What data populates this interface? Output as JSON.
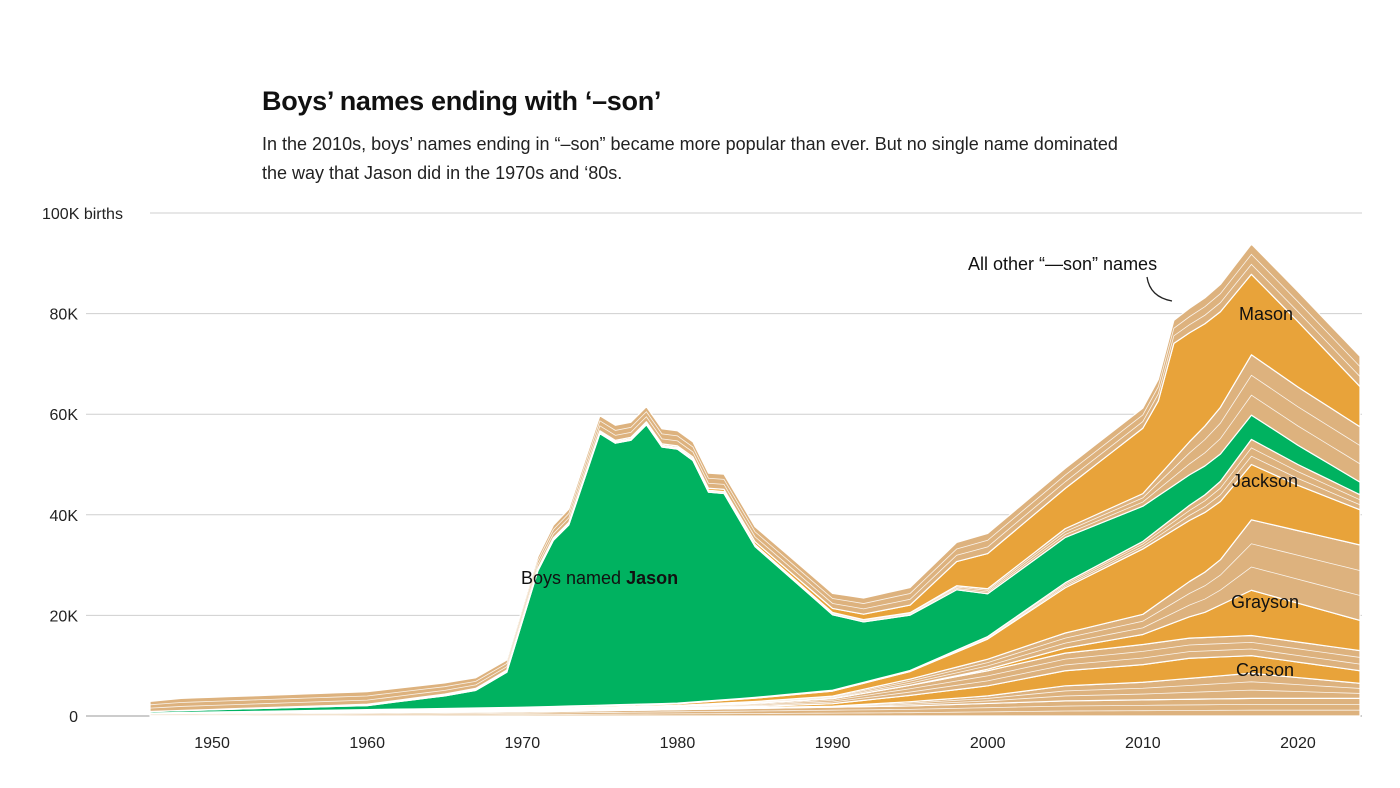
{
  "title": "Boys’ names ending with ‘–son’",
  "subtitle": "In the 2010s, boys’ names ending in “–son” became more popular than ever. But no single name dominated the way that Jason did in the 1970s and ‘80s.",
  "chart_data": {
    "type": "area",
    "stacked": true,
    "title": "Boys’ names ending with ‘–son’",
    "ylabel": "births",
    "ylim": [
      0,
      100000
    ],
    "xlim": [
      1946,
      2024
    ],
    "y_ticks": [
      "0",
      "20K",
      "40K",
      "60K",
      "80K",
      "100K births"
    ],
    "y_tick_values": [
      0,
      20000,
      40000,
      60000,
      80000,
      100000
    ],
    "x_ticks": [
      "1950",
      "1960",
      "1970",
      "1980",
      "1990",
      "2000",
      "2010",
      "2020"
    ],
    "grid": true,
    "colors": {
      "highlight_orange": "#e8a33a",
      "jason_green": "#00b260",
      "other_tan": "#ddb27e",
      "separator": "#ffffff"
    },
    "annotations": {
      "jason_prefix": "Boys named ",
      "jason_name": "Jason",
      "others": "All other “—son” names",
      "mason": "Mason",
      "jackson": "Jackson",
      "grayson": "Grayson",
      "carson": "Carson"
    },
    "series_units": "thousands of births, [year, value] anchor points, linearly interpolated",
    "series": [
      {
        "key": "other-bottom",
        "color": "other_tan",
        "points": [
          [
            1946,
            0.5
          ],
          [
            1970,
            0.8
          ],
          [
            1985,
            1.5
          ],
          [
            1995,
            2
          ],
          [
            2005,
            3
          ],
          [
            2017,
            3.5
          ],
          [
            2024,
            3.5
          ]
        ]
      },
      {
        "key": "other-a",
        "color": "other_tan",
        "points": [
          [
            1946,
            0.1
          ],
          [
            1990,
            0.2
          ],
          [
            2000,
            1.5
          ],
          [
            2005,
            3
          ],
          [
            2010,
            3.5
          ],
          [
            2017,
            5
          ],
          [
            2024,
            3
          ]
        ]
      },
      {
        "key": "carson",
        "name": "Carson",
        "color": "highlight_orange",
        "points": [
          [
            1946,
            0
          ],
          [
            1985,
            0.2
          ],
          [
            1990,
            0.5
          ],
          [
            2000,
            2
          ],
          [
            2005,
            3
          ],
          [
            2010,
            3.5
          ],
          [
            2013,
            4
          ],
          [
            2017,
            3.5
          ],
          [
            2024,
            2.5
          ]
        ]
      },
      {
        "key": "other-b",
        "color": "other_tan",
        "points": [
          [
            1946,
            0
          ],
          [
            1980,
            0.3
          ],
          [
            1990,
            1
          ],
          [
            2000,
            3
          ],
          [
            2010,
            4
          ],
          [
            2017,
            4
          ],
          [
            2024,
            4
          ]
        ]
      },
      {
        "key": "grayson",
        "name": "Grayson",
        "color": "highlight_orange",
        "points": [
          [
            1946,
            0
          ],
          [
            1995,
            0
          ],
          [
            2000,
            0.3
          ],
          [
            2005,
            1
          ],
          [
            2010,
            2
          ],
          [
            2014,
            5
          ],
          [
            2017,
            9
          ],
          [
            2024,
            6
          ]
        ]
      },
      {
        "key": "other-c",
        "color": "other_tan",
        "points": [
          [
            1946,
            0
          ],
          [
            1980,
            0.2
          ],
          [
            1990,
            0.5
          ],
          [
            2000,
            2
          ],
          [
            2010,
            4
          ],
          [
            2015,
            9
          ],
          [
            2017,
            14
          ],
          [
            2024,
            15
          ]
        ]
      },
      {
        "key": "jackson",
        "name": "Jackson",
        "color": "highlight_orange",
        "points": [
          [
            1946,
            0
          ],
          [
            1980,
            0.3
          ],
          [
            1990,
            1
          ],
          [
            1995,
            1.5
          ],
          [
            2000,
            4
          ],
          [
            2005,
            9
          ],
          [
            2010,
            13
          ],
          [
            2017,
            11
          ],
          [
            2020,
            9
          ],
          [
            2024,
            7
          ]
        ]
      },
      {
        "key": "other-d",
        "color": "other_tan",
        "points": [
          [
            1946,
            0
          ],
          [
            1995,
            0.2
          ],
          [
            2000,
            0.5
          ],
          [
            2010,
            1.5
          ],
          [
            2017,
            5
          ],
          [
            2024,
            3
          ]
        ]
      },
      {
        "key": "jason",
        "name": "Jason",
        "color": "jason_green",
        "points": [
          [
            1946,
            0.3
          ],
          [
            1960,
            0.8
          ],
          [
            1965,
            2.5
          ],
          [
            1967,
            3.5
          ],
          [
            1969,
            7
          ],
          [
            1971,
            27
          ],
          [
            1972,
            33
          ],
          [
            1973,
            36
          ],
          [
            1975,
            54
          ],
          [
            1976,
            52
          ],
          [
            1977,
            52.5
          ],
          [
            1978,
            55.5
          ],
          [
            1979,
            51
          ],
          [
            1980,
            50.5
          ],
          [
            1981,
            48
          ],
          [
            1982,
            41.5
          ],
          [
            1983,
            41
          ],
          [
            1985,
            30
          ],
          [
            1990,
            15
          ],
          [
            1992,
            12
          ],
          [
            1995,
            11
          ],
          [
            1998,
            12
          ],
          [
            2000,
            8.5
          ],
          [
            2005,
            9
          ],
          [
            2010,
            7
          ],
          [
            2018,
            4.5
          ],
          [
            2024,
            2.5
          ]
        ]
      },
      {
        "key": "other-e",
        "color": "other_tan",
        "points": [
          [
            1946,
            0
          ],
          [
            1995,
            0.5
          ],
          [
            2000,
            1
          ],
          [
            2010,
            2.5
          ],
          [
            2017,
            12
          ],
          [
            2024,
            11
          ]
        ]
      },
      {
        "key": "mason",
        "name": "Mason",
        "color": "highlight_orange",
        "points": [
          [
            1946,
            0
          ],
          [
            1980,
            0.3
          ],
          [
            1990,
            0.8
          ],
          [
            1995,
            1.5
          ],
          [
            2000,
            7
          ],
          [
            2005,
            8
          ],
          [
            2010,
            13
          ],
          [
            2011,
            15
          ],
          [
            2012,
            23
          ],
          [
            2015,
            19
          ],
          [
            2017,
            16
          ],
          [
            2020,
            13
          ],
          [
            2024,
            8
          ]
        ]
      },
      {
        "key": "other-top",
        "color": "other_tan",
        "points": [
          [
            1946,
            2
          ],
          [
            1948,
            2.4
          ],
          [
            1960,
            2.5
          ],
          [
            1969,
            2
          ],
          [
            1975,
            3
          ],
          [
            1985,
            3
          ],
          [
            1990,
            3
          ],
          [
            2000,
            4
          ],
          [
            2010,
            4
          ],
          [
            2017,
            6
          ],
          [
            2024,
            6
          ]
        ]
      }
    ]
  }
}
